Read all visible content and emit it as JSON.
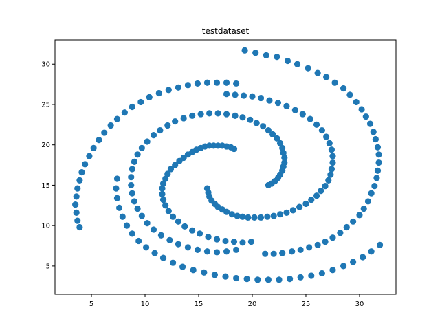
{
  "chart_data": {
    "type": "scatter",
    "title": "testdataset",
    "xlabel": "",
    "ylabel": "",
    "xlim": [
      1.6,
      33.4
    ],
    "ylim": [
      1.5,
      33.0
    ],
    "xticks": [
      5,
      10,
      15,
      20,
      25,
      30
    ],
    "yticks": [
      5,
      10,
      15,
      20,
      25,
      30
    ],
    "grid": false,
    "marker_color": "#1f77b4",
    "series": [
      {
        "arm": "outer",
        "points": [
          [
            19.3,
            31.7
          ],
          [
            20.3,
            31.4
          ],
          [
            21.3,
            31.1
          ],
          [
            22.3,
            30.9
          ],
          [
            23.3,
            30.4
          ],
          [
            24.2,
            30.0
          ],
          [
            25.2,
            29.5
          ],
          [
            26.1,
            28.9
          ],
          [
            26.9,
            28.4
          ],
          [
            27.7,
            27.7
          ],
          [
            28.5,
            27.0
          ],
          [
            29.1,
            26.2
          ],
          [
            29.7,
            25.3
          ],
          [
            30.2,
            24.4
          ],
          [
            30.6,
            23.5
          ],
          [
            31.0,
            22.6
          ],
          [
            31.3,
            21.6
          ],
          [
            31.5,
            20.7
          ],
          [
            31.7,
            19.7
          ],
          [
            31.8,
            18.8
          ],
          [
            31.8,
            17.8
          ],
          [
            31.7,
            16.8
          ],
          [
            31.6,
            15.9
          ],
          [
            31.4,
            14.9
          ],
          [
            31.1,
            14.0
          ],
          [
            30.8,
            13.0
          ],
          [
            30.4,
            12.1
          ],
          [
            30.0,
            11.3
          ],
          [
            29.4,
            10.5
          ],
          [
            28.8,
            9.8
          ],
          [
            28.2,
            9.1
          ],
          [
            27.5,
            8.5
          ],
          [
            26.8,
            8.0
          ],
          [
            26.1,
            7.6
          ],
          [
            25.3,
            7.3
          ],
          [
            24.5,
            7.0
          ],
          [
            23.7,
            6.8
          ],
          [
            22.8,
            6.6
          ],
          [
            22.0,
            6.5
          ],
          [
            21.2,
            6.5
          ]
        ]
      },
      {
        "arm": "inner-a",
        "points": [
          [
            21.5,
            15.0
          ],
          [
            21.8,
            15.2
          ],
          [
            22.1,
            15.5
          ],
          [
            22.4,
            15.9
          ],
          [
            22.6,
            16.3
          ],
          [
            22.8,
            16.8
          ],
          [
            22.9,
            17.3
          ],
          [
            23.0,
            17.8
          ],
          [
            23.0,
            18.4
          ],
          [
            22.9,
            19.0
          ],
          [
            22.8,
            19.6
          ],
          [
            22.6,
            20.2
          ],
          [
            22.3,
            20.8
          ],
          [
            21.9,
            21.3
          ],
          [
            21.5,
            21.8
          ],
          [
            21.0,
            22.3
          ],
          [
            20.4,
            22.7
          ],
          [
            19.8,
            23.1
          ],
          [
            19.1,
            23.4
          ],
          [
            18.4,
            23.6
          ],
          [
            17.6,
            23.8
          ],
          [
            16.8,
            23.9
          ],
          [
            16.0,
            23.9
          ],
          [
            15.2,
            23.8
          ],
          [
            14.4,
            23.6
          ],
          [
            13.6,
            23.3
          ],
          [
            12.8,
            22.9
          ],
          [
            12.1,
            22.4
          ],
          [
            11.4,
            21.8
          ],
          [
            10.8,
            21.2
          ],
          [
            10.2,
            20.4
          ],
          [
            9.7,
            19.6
          ],
          [
            9.3,
            18.8
          ],
          [
            9.0,
            17.9
          ],
          [
            8.8,
            17.0
          ],
          [
            8.7,
            16.0
          ],
          [
            8.7,
            15.0
          ],
          [
            8.8,
            14.0
          ],
          [
            9.0,
            13.0
          ],
          [
            9.3,
            12.1
          ],
          [
            9.7,
            11.2
          ],
          [
            10.2,
            10.3
          ],
          [
            10.8,
            9.5
          ],
          [
            11.5,
            8.8
          ],
          [
            12.3,
            8.2
          ],
          [
            13.1,
            7.7
          ],
          [
            14.0,
            7.3
          ],
          [
            14.9,
            7.0
          ],
          [
            15.8,
            6.8
          ],
          [
            16.7,
            6.7
          ],
          [
            17.6,
            6.8
          ],
          [
            18.5,
            7.0
          ]
        ]
      },
      {
        "arm": "inner-b",
        "points": [
          [
            18.3,
            19.5
          ],
          [
            18.0,
            19.7
          ],
          [
            17.6,
            19.8
          ],
          [
            17.2,
            19.9
          ],
          [
            16.8,
            19.9
          ],
          [
            16.4,
            19.9
          ],
          [
            16.0,
            19.9
          ],
          [
            15.6,
            19.8
          ],
          [
            15.2,
            19.6
          ],
          [
            14.8,
            19.4
          ],
          [
            14.4,
            19.1
          ],
          [
            14.0,
            18.8
          ],
          [
            13.6,
            18.4
          ],
          [
            13.2,
            18.0
          ],
          [
            12.8,
            17.5
          ],
          [
            12.4,
            17.0
          ],
          [
            12.1,
            16.4
          ],
          [
            11.9,
            15.8
          ],
          [
            11.7,
            15.2
          ],
          [
            11.6,
            14.6
          ],
          [
            11.6,
            13.9
          ],
          [
            11.7,
            13.2
          ],
          [
            11.9,
            12.5
          ],
          [
            12.2,
            11.8
          ],
          [
            12.6,
            11.1
          ],
          [
            13.1,
            10.5
          ],
          [
            13.7,
            9.9
          ],
          [
            14.4,
            9.4
          ],
          [
            15.1,
            9.0
          ],
          [
            15.9,
            8.6
          ],
          [
            16.7,
            8.3
          ],
          [
            17.5,
            8.1
          ],
          [
            18.3,
            8.0
          ],
          [
            19.1,
            7.9
          ],
          [
            19.9,
            8.0
          ]
        ]
      },
      {
        "arm": "inner-c",
        "points": [
          [
            15.8,
            14.6
          ],
          [
            15.9,
            14.1
          ],
          [
            16.0,
            13.6
          ],
          [
            16.2,
            13.1
          ],
          [
            16.5,
            12.7
          ],
          [
            16.8,
            12.3
          ],
          [
            17.2,
            12.0
          ],
          [
            17.6,
            11.7
          ],
          [
            18.1,
            11.4
          ],
          [
            18.6,
            11.2
          ],
          [
            19.1,
            11.1
          ],
          [
            19.6,
            11.0
          ],
          [
            20.2,
            11.0
          ],
          [
            20.8,
            11.0
          ],
          [
            21.4,
            11.1
          ],
          [
            22.0,
            11.2
          ],
          [
            22.6,
            11.4
          ],
          [
            23.2,
            11.6
          ],
          [
            23.8,
            11.9
          ],
          [
            24.4,
            12.3
          ],
          [
            25.0,
            12.7
          ],
          [
            25.5,
            13.2
          ],
          [
            26.0,
            13.7
          ],
          [
            26.4,
            14.3
          ],
          [
            26.8,
            14.9
          ],
          [
            27.1,
            15.6
          ],
          [
            27.3,
            16.3
          ],
          [
            27.4,
            17.0
          ],
          [
            27.5,
            17.8
          ],
          [
            27.5,
            18.6
          ],
          [
            27.4,
            19.4
          ],
          [
            27.2,
            20.2
          ],
          [
            26.9,
            21.0
          ],
          [
            26.5,
            21.8
          ],
          [
            26.0,
            22.5
          ],
          [
            25.4,
            23.2
          ],
          [
            24.7,
            23.8
          ],
          [
            24.0,
            24.3
          ],
          [
            23.2,
            24.8
          ],
          [
            22.4,
            25.2
          ],
          [
            21.6,
            25.5
          ],
          [
            20.8,
            25.8
          ],
          [
            20.0,
            26.0
          ],
          [
            19.2,
            26.1
          ],
          [
            18.4,
            26.2
          ],
          [
            17.6,
            26.3
          ]
        ]
      },
      {
        "arm": "big-outer",
        "points": [
          [
            18.5,
            27.6
          ],
          [
            17.6,
            27.7
          ],
          [
            16.7,
            27.7
          ],
          [
            15.8,
            27.7
          ],
          [
            14.9,
            27.6
          ],
          [
            14.0,
            27.4
          ],
          [
            13.1,
            27.1
          ],
          [
            12.2,
            26.8
          ],
          [
            11.3,
            26.4
          ],
          [
            10.4,
            25.9
          ],
          [
            9.6,
            25.3
          ],
          [
            8.8,
            24.7
          ],
          [
            8.1,
            24.0
          ],
          [
            7.4,
            23.2
          ],
          [
            6.8,
            22.4
          ],
          [
            6.2,
            21.5
          ],
          [
            5.7,
            20.6
          ],
          [
            5.2,
            19.6
          ],
          [
            4.8,
            18.6
          ],
          [
            4.4,
            17.6
          ],
          [
            4.1,
            16.6
          ],
          [
            3.9,
            15.6
          ],
          [
            3.7,
            14.6
          ],
          [
            3.6,
            13.6
          ],
          [
            3.5,
            12.6
          ],
          [
            3.6,
            11.6
          ],
          [
            3.7,
            10.6
          ],
          [
            3.9,
            9.8
          ]
        ]
      },
      {
        "arm": "bottom",
        "points": [
          [
            7.4,
            15.8
          ],
          [
            7.3,
            14.6
          ],
          [
            7.4,
            13.4
          ],
          [
            7.6,
            12.2
          ],
          [
            7.9,
            11.1
          ],
          [
            8.3,
            10.0
          ],
          [
            8.8,
            9.0
          ],
          [
            9.4,
            8.1
          ],
          [
            10.1,
            7.3
          ],
          [
            10.9,
            6.6
          ],
          [
            11.7,
            6.0
          ],
          [
            12.6,
            5.4
          ],
          [
            13.5,
            4.9
          ],
          [
            14.5,
            4.5
          ],
          [
            15.5,
            4.2
          ],
          [
            16.5,
            3.9
          ],
          [
            17.5,
            3.7
          ],
          [
            18.5,
            3.5
          ],
          [
            19.5,
            3.4
          ],
          [
            20.5,
            3.3
          ],
          [
            21.5,
            3.3
          ],
          [
            22.5,
            3.3
          ],
          [
            23.5,
            3.4
          ],
          [
            24.5,
            3.6
          ],
          [
            25.5,
            3.8
          ],
          [
            26.5,
            4.1
          ],
          [
            27.5,
            4.5
          ],
          [
            28.5,
            5.0
          ],
          [
            29.4,
            5.5
          ],
          [
            30.3,
            6.1
          ],
          [
            31.1,
            6.8
          ],
          [
            31.9,
            7.6
          ]
        ]
      }
    ]
  }
}
